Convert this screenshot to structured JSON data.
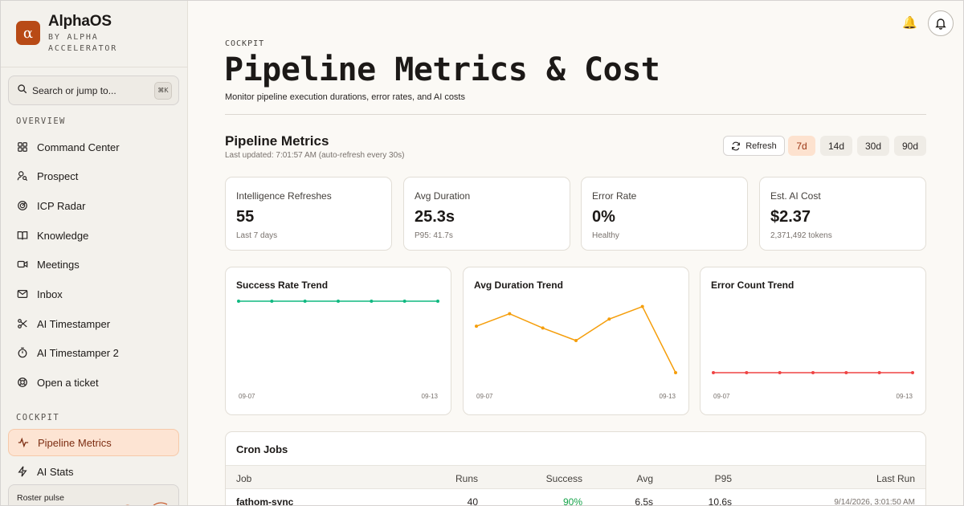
{
  "brand": {
    "logo_letter": "α",
    "name": "AlphaOS",
    "subtitle": "BY ALPHA ACCELERATOR",
    "accent": "#b84a16"
  },
  "search": {
    "placeholder": "Search or jump to...",
    "shortcut": "⌘K"
  },
  "sidebar": {
    "overview_label": "OVERVIEW",
    "overview_items": [
      {
        "label": "Command Center",
        "icon": "grid-icon"
      },
      {
        "label": "Prospect",
        "icon": "user-search-icon"
      },
      {
        "label": "ICP Radar",
        "icon": "radar-icon"
      },
      {
        "label": "Knowledge",
        "icon": "book-icon"
      },
      {
        "label": "Meetings",
        "icon": "video-icon"
      },
      {
        "label": "Inbox",
        "icon": "mail-icon"
      },
      {
        "label": "AI Timestamper",
        "icon": "scissors-icon"
      },
      {
        "label": "AI Timestamper 2",
        "icon": "timer-icon"
      },
      {
        "label": "Open a ticket",
        "icon": "lifebuoy-icon"
      }
    ],
    "cockpit_label": "COCKPIT",
    "cockpit_items": [
      {
        "label": "Pipeline Metrics",
        "icon": "activity-icon",
        "active": true
      },
      {
        "label": "AI Stats",
        "icon": "zap-icon"
      }
    ],
    "pulse_label": "Roster pulse"
  },
  "header": {
    "eyebrow": "COCKPIT",
    "title": "Pipeline Metrics & Cost",
    "subtitle": "Monitor pipeline execution durations, error rates, and AI costs"
  },
  "metrics_section": {
    "title": "Pipeline Metrics",
    "updated": "Last updated: 7:01:57 AM (auto-refresh every 30s)",
    "refresh_label": "Refresh",
    "ranges": [
      "7d",
      "14d",
      "30d",
      "90d"
    ],
    "active_range": "7d"
  },
  "stats": [
    {
      "label": "Intelligence Refreshes",
      "value": "55",
      "note": "Last 7 days"
    },
    {
      "label": "Avg Duration",
      "value": "25.3s",
      "note": "P95: 41.7s"
    },
    {
      "label": "Error Rate",
      "value": "0%",
      "note": "Healthy"
    },
    {
      "label": "Est. AI Cost",
      "value": "$2.37",
      "note": "2,371,492 tokens"
    }
  ],
  "chart_data": [
    {
      "type": "line",
      "title": "Success Rate Trend",
      "x": [
        "09-07",
        "09-08",
        "09-09",
        "09-10",
        "09-11",
        "09-12",
        "09-13"
      ],
      "tick_labels": [
        "09-07",
        "09-13"
      ],
      "series": [
        {
          "values": [
            100,
            100,
            100,
            100,
            100,
            100,
            100
          ]
        }
      ],
      "ylim": [
        0,
        100
      ],
      "color": "#10b981"
    },
    {
      "type": "line",
      "title": "Avg Duration Trend",
      "x": [
        "09-07",
        "09-08",
        "09-09",
        "09-10",
        "09-11",
        "09-12",
        "09-13"
      ],
      "tick_labels": [
        "09-07",
        "09-13"
      ],
      "series": [
        {
          "values": [
            26,
            33,
            25,
            18,
            30,
            37,
            0
          ]
        }
      ],
      "ylim": [
        0,
        40
      ],
      "color": "#f59e0b"
    },
    {
      "type": "line",
      "title": "Error Count Trend",
      "x": [
        "09-07",
        "09-08",
        "09-09",
        "09-10",
        "09-11",
        "09-12",
        "09-13"
      ],
      "tick_labels": [
        "09-07",
        "09-13"
      ],
      "series": [
        {
          "values": [
            0,
            0,
            0,
            0,
            0,
            0,
            0
          ]
        }
      ],
      "ylim": [
        0,
        1
      ],
      "color": "#ef4444"
    }
  ],
  "cron": {
    "title": "Cron Jobs",
    "columns": {
      "job": "Job",
      "runs": "Runs",
      "success": "Success",
      "avg": "Avg",
      "p95": "P95",
      "last": "Last Run"
    },
    "rows": [
      {
        "job": "fathom-sync",
        "runs": "40",
        "success": "90%",
        "avg": "6.5s",
        "p95": "10.6s",
        "last": "9/14/2026, 3:01:50 AM"
      }
    ]
  }
}
